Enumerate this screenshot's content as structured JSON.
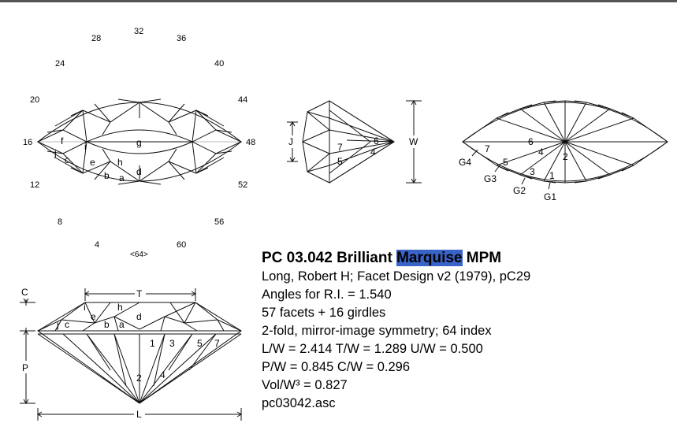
{
  "title": {
    "prefix": "PC 03.042 Brilliant ",
    "highlight": "Marquise",
    "suffix": " MPM",
    "highlight_color": "#3a63c8"
  },
  "info_lines": [
    "Long, Robert H; Facet Design v2 (1979), pC29",
    "Angles for R.I. = 1.540",
    "57 facets + 16 girdles",
    "2-fold, mirror-image symmetry; 64 index",
    "L/W = 2.414  T/W = 1.289  U/W = 0.500",
    "P/W = 0.845  C/W = 0.296",
    "Vol/W³ = 0.827",
    "pc03042.asc"
  ],
  "index_labels": [
    "32",
    "28",
    "36",
    "24",
    "40",
    "20",
    "44",
    "16",
    "48",
    "12",
    "52",
    "8",
    "56",
    "4",
    "60",
    "<64>"
  ],
  "top_view_facets": [
    "f",
    "i",
    "g",
    "j",
    "c",
    "e",
    "h",
    "d",
    "b",
    "a"
  ],
  "end_view": {
    "facets": [
      "6",
      "7",
      "4",
      "5"
    ],
    "dims": [
      "J",
      "W"
    ]
  },
  "pavilion_view": {
    "facets": [
      "7",
      "6",
      "4",
      "2",
      "5",
      "3",
      "1"
    ],
    "girdles": [
      "G4",
      "G3",
      "G2",
      "G1"
    ]
  },
  "side_view": {
    "facets": [
      "i",
      "h",
      "e",
      "d",
      "j",
      "c",
      "b",
      "a",
      "1",
      "3",
      "5",
      "7",
      "2",
      "4"
    ],
    "dims": [
      "C",
      "T",
      "P",
      "L"
    ]
  }
}
